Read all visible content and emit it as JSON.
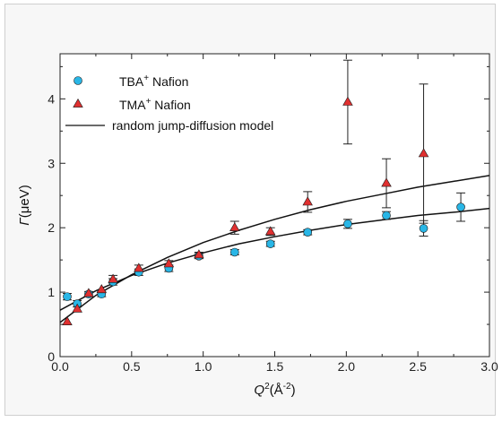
{
  "chart_data": {
    "type": "scatter",
    "xlabel_parts": [
      "Q",
      "2",
      "(Å",
      "-2",
      ")"
    ],
    "ylabel_parts": [
      "Γ",
      "(μeV)"
    ],
    "xlim": [
      0.0,
      3.0
    ],
    "ylim": [
      0,
      4.7
    ],
    "x_ticks": [
      "0.0",
      "0.5",
      "1.0",
      "1.5",
      "2.0",
      "2.5",
      "3.0"
    ],
    "y_ticks": [
      "0",
      "1",
      "2",
      "3",
      "4"
    ],
    "grid": false,
    "legend_placement": "top-left",
    "series": [
      {
        "name_parts": [
          "TBA",
          "+",
          " Nafion"
        ],
        "marker": "circle",
        "color": "#29b6e6",
        "points": [
          {
            "x": 0.05,
            "y": 0.93,
            "err": 0.05
          },
          {
            "x": 0.12,
            "y": 0.82,
            "err": 0.05
          },
          {
            "x": 0.2,
            "y": 0.97,
            "err": 0.04
          },
          {
            "x": 0.29,
            "y": 0.97,
            "err": 0.04
          },
          {
            "x": 0.37,
            "y": 1.16,
            "err": 0.05
          },
          {
            "x": 0.55,
            "y": 1.31,
            "err": 0.05
          },
          {
            "x": 0.76,
            "y": 1.37,
            "err": 0.05
          },
          {
            "x": 0.97,
            "y": 1.56,
            "err": 0.04
          },
          {
            "x": 1.22,
            "y": 1.62,
            "err": 0.04
          },
          {
            "x": 1.47,
            "y": 1.75,
            "err": 0.04
          },
          {
            "x": 1.73,
            "y": 1.93,
            "err": 0.04
          },
          {
            "x": 2.01,
            "y": 2.06,
            "err": 0.07
          },
          {
            "x": 2.28,
            "y": 2.19,
            "err": 0.06
          },
          {
            "x": 2.54,
            "y": 1.99,
            "err": 0.12
          },
          {
            "x": 2.8,
            "y": 2.32,
            "err": 0.22
          }
        ]
      },
      {
        "name_parts": [
          "TMA",
          "+",
          " Nafion"
        ],
        "marker": "triangle",
        "color": "#e03030",
        "points": [
          {
            "x": 0.05,
            "y": 0.54,
            "err": 0.0
          },
          {
            "x": 0.12,
            "y": 0.74,
            "err": 0.0
          },
          {
            "x": 0.2,
            "y": 0.98,
            "err": 0.0
          },
          {
            "x": 0.29,
            "y": 1.04,
            "err": 0.0
          },
          {
            "x": 0.37,
            "y": 1.2,
            "err": 0.06
          },
          {
            "x": 0.55,
            "y": 1.37,
            "err": 0.05
          },
          {
            "x": 0.76,
            "y": 1.44,
            "err": 0.05
          },
          {
            "x": 0.97,
            "y": 1.58,
            "err": 0.04
          },
          {
            "x": 1.22,
            "y": 2.0,
            "err": 0.1
          },
          {
            "x": 1.47,
            "y": 1.94,
            "err": 0.06
          },
          {
            "x": 1.73,
            "y": 2.4,
            "err": 0.16
          },
          {
            "x": 2.01,
            "y": 3.95,
            "err": 0.65
          },
          {
            "x": 2.28,
            "y": 2.69,
            "err": 0.38
          },
          {
            "x": 2.54,
            "y": 3.15,
            "err": 1.08
          }
        ]
      }
    ],
    "model_label": "random jump-diffusion model",
    "model_curves": [
      {
        "for": "TBA",
        "x": [
          0.0,
          0.25,
          0.5,
          0.75,
          1.0,
          1.25,
          1.5,
          1.75,
          2.0,
          2.25,
          2.5,
          2.75,
          3.0
        ],
        "y": [
          0.72,
          1.02,
          1.26,
          1.45,
          1.61,
          1.75,
          1.86,
          1.96,
          2.05,
          2.12,
          2.19,
          2.24,
          2.3
        ]
      },
      {
        "for": "TMA",
        "x": [
          0.0,
          0.25,
          0.5,
          0.75,
          1.0,
          1.25,
          1.5,
          1.75,
          2.0,
          2.25,
          2.5,
          2.75,
          3.0
        ],
        "y": [
          0.53,
          0.95,
          1.27,
          1.54,
          1.77,
          1.96,
          2.13,
          2.28,
          2.41,
          2.52,
          2.63,
          2.72,
          2.81
        ]
      }
    ],
    "colors": {
      "model_line": "#111111",
      "axis": "#222222",
      "frame_bg": "#f7f7f7",
      "plot_bg": "#ffffff"
    }
  }
}
